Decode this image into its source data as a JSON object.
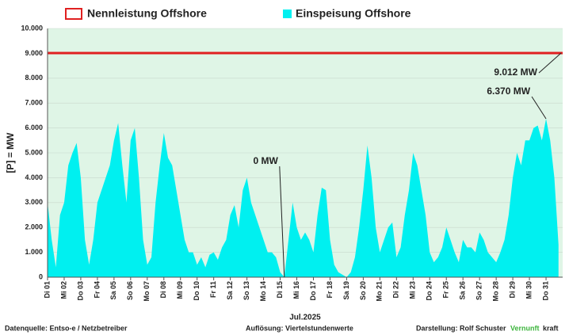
{
  "chart_data": {
    "type": "area",
    "y_label": "[P] = MW",
    "x_label": "Jul.2025",
    "x": [
      1,
      1.25,
      1.5,
      1.75,
      2,
      2.25,
      2.5,
      2.75,
      3,
      3.25,
      3.5,
      3.75,
      4,
      4.25,
      4.5,
      4.75,
      5,
      5.25,
      5.5,
      5.75,
      6,
      6.25,
      6.5,
      6.75,
      7,
      7.25,
      7.5,
      7.75,
      8,
      8.25,
      8.5,
      8.75,
      9,
      9.25,
      9.5,
      9.75,
      10,
      10.25,
      10.5,
      10.75,
      11,
      11.25,
      11.5,
      11.75,
      12,
      12.25,
      12.5,
      12.75,
      13,
      13.25,
      13.5,
      13.75,
      14,
      14.25,
      14.5,
      14.75,
      15,
      15.25,
      15.5,
      15.75,
      16,
      16.25,
      16.5,
      16.75,
      17,
      17.25,
      17.5,
      17.75,
      18,
      18.25,
      18.5,
      18.75,
      19,
      19.25,
      19.5,
      19.75,
      20,
      20.25,
      20.5,
      20.75,
      21,
      21.25,
      21.5,
      21.75,
      22,
      22.25,
      22.5,
      22.75,
      23,
      23.25,
      23.5,
      23.75,
      24,
      24.25,
      24.5,
      24.75,
      25,
      25.25,
      25.5,
      25.75,
      26,
      26.25,
      26.5,
      26.75,
      27,
      27.25,
      27.5,
      27.75,
      28,
      28.25,
      28.5,
      28.75,
      29,
      29.25,
      29.5,
      29.75,
      30,
      30.25,
      30.5,
      30.75,
      31,
      31.25,
      31.5,
      31.75
    ],
    "series": [
      {
        "name": "Einspeisung Offshore",
        "color": "#00f0f0",
        "values": [
          3000,
          1500,
          400,
          2500,
          3000,
          4500,
          5000,
          5400,
          4000,
          1500,
          500,
          1500,
          3000,
          3500,
          4000,
          4500,
          5500,
          6200,
          4500,
          3000,
          5500,
          6000,
          4000,
          1500,
          500,
          800,
          3000,
          4500,
          5800,
          4800,
          4500,
          3500,
          2500,
          1500,
          1000,
          1000,
          500,
          800,
          400,
          900,
          1000,
          700,
          1200,
          1500,
          2500,
          2900,
          2000,
          3500,
          4000,
          3000,
          2500,
          2000,
          1500,
          1000,
          1000,
          800,
          200,
          0,
          1500,
          3000,
          2000,
          1500,
          1800,
          1500,
          1000,
          2500,
          3600,
          3500,
          1500,
          500,
          200,
          100,
          0,
          200,
          800,
          2000,
          3500,
          5300,
          4000,
          2000,
          1000,
          1500,
          2000,
          2200,
          800,
          1200,
          2500,
          3500,
          5000,
          4500,
          3500,
          2500,
          1000,
          600,
          800,
          1200,
          2000,
          1500,
          1000,
          600,
          1500,
          1200,
          1200,
          1000,
          1800,
          1500,
          1000,
          800,
          600,
          1000,
          1500,
          2500,
          4000,
          5000,
          4500,
          5500,
          5500,
          6000,
          6100,
          5500,
          6370,
          5500,
          4000,
          1300
        ]
      }
    ],
    "reference_line": {
      "name": "Nennleistung Offshore",
      "value": 9012,
      "color": "#e02020"
    },
    "annotations": [
      {
        "text": "9.012 MW",
        "x": 32,
        "value": 9012
      },
      {
        "text": "6.370 MW",
        "x": 31,
        "value": 6370
      },
      {
        "text": "0 MW",
        "x": 15.25,
        "value": 0
      }
    ],
    "xlim": [
      1,
      32
    ],
    "xticks": [
      {
        "value": 1,
        "label": "Di 01"
      },
      {
        "value": 2,
        "label": "Mi 02"
      },
      {
        "value": 3,
        "label": "Do 03"
      },
      {
        "value": 4,
        "label": "Fr 04"
      },
      {
        "value": 5,
        "label": "Sa 05"
      },
      {
        "value": 6,
        "label": "So 06"
      },
      {
        "value": 7,
        "label": "Mo 07"
      },
      {
        "value": 8,
        "label": "Di 08"
      },
      {
        "value": 9,
        "label": "Mi 09"
      },
      {
        "value": 10,
        "label": "Do 10"
      },
      {
        "value": 11,
        "label": "Fr 11"
      },
      {
        "value": 12,
        "label": "Sa 12"
      },
      {
        "value": 13,
        "label": "So 13"
      },
      {
        "value": 14,
        "label": "Mo 14"
      },
      {
        "value": 15,
        "label": "Di 15"
      },
      {
        "value": 16,
        "label": "Mi 16"
      },
      {
        "value": 17,
        "label": "Do 17"
      },
      {
        "value": 18,
        "label": "Fr 18"
      },
      {
        "value": 19,
        "label": "Sa 19"
      },
      {
        "value": 20,
        "label": "So 20"
      },
      {
        "value": 21,
        "label": "Mo 21"
      },
      {
        "value": 22,
        "label": "Di 22"
      },
      {
        "value": 23,
        "label": "Mi 23"
      },
      {
        "value": 24,
        "label": "Do 24"
      },
      {
        "value": 25,
        "label": "Fr 25"
      },
      {
        "value": 26,
        "label": "Sa 26"
      },
      {
        "value": 27,
        "label": "So 27"
      },
      {
        "value": 28,
        "label": "Mo 28"
      },
      {
        "value": 29,
        "label": "Di 29"
      },
      {
        "value": 30,
        "label": "Mi 30"
      },
      {
        "value": 31,
        "label": "Do 31"
      }
    ],
    "ylim": [
      0,
      10000
    ],
    "yticks": [
      0,
      {
        "value": 1000,
        "label": "1.000"
      },
      {
        "value": 2000,
        "label": "2.000"
      },
      {
        "value": 3000,
        "label": "3.000"
      },
      {
        "value": 4000,
        "label": "4.000"
      },
      {
        "value": 5000,
        "label": "5.000"
      },
      {
        "value": 6000,
        "label": "6.000"
      },
      {
        "value": 7000,
        "label": "7.000"
      },
      {
        "value": 8000,
        "label": "8.000"
      },
      {
        "value": 9000,
        "label": "9.000"
      },
      {
        "value": 10000,
        "label": "10.000"
      }
    ],
    "grid": true,
    "plot_background": "#dff5e6",
    "footer": {
      "source": "Datenquelle: Entso-e  / Netzbetreiber",
      "resolution": "Auflösung: Viertelstundenwerte",
      "author": "Darstellung:  Rolf Schuster",
      "brand_green": "Vernunft",
      "brand_black": "kraft"
    }
  }
}
